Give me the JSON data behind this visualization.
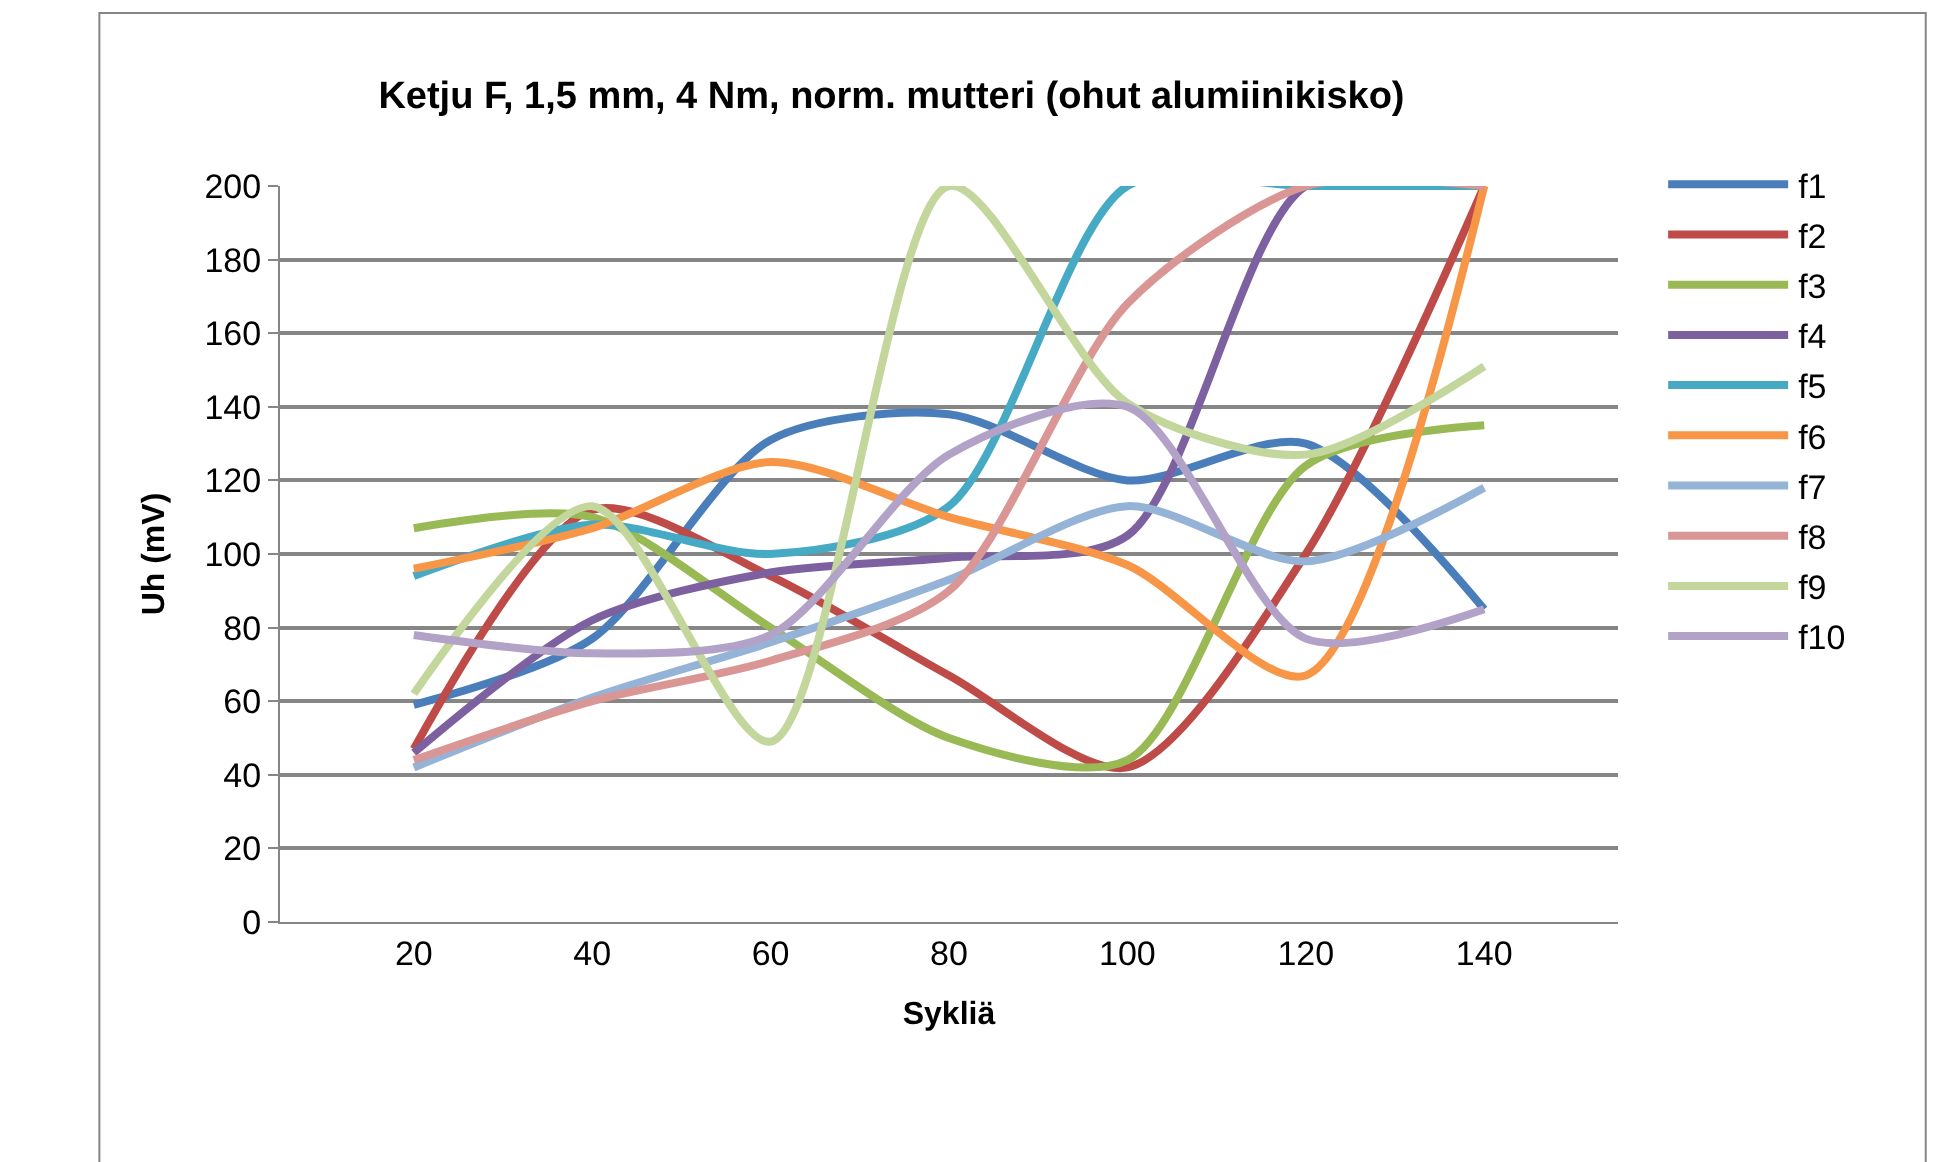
{
  "chart_data": {
    "type": "line",
    "title": "Ketju F, 1,5 mm, 4 Nm, norm. mutteri (ohut alumiinikisko)",
    "xlabel": "Sykliä",
    "ylabel": "Uh (mV)",
    "x": [
      20,
      40,
      60,
      80,
      100,
      120,
      140
    ],
    "xlim": [
      5,
      155
    ],
    "xticks": [
      20,
      40,
      60,
      80,
      100,
      120,
      140
    ],
    "ylim": [
      0,
      200
    ],
    "yticks": [
      0,
      20,
      40,
      60,
      80,
      100,
      120,
      140,
      160,
      180,
      200
    ],
    "grid": "y",
    "legend": "right",
    "marker": "none",
    "line_style": "solid",
    "series": [
      {
        "name": "f1",
        "color": "#4a7ebb",
        "values": [
          59,
          77,
          131,
          138,
          120,
          130,
          85
        ]
      },
      {
        "name": "f2",
        "color": "#be4b48",
        "values": [
          47,
          112,
          94,
          67,
          42,
          100,
          200
        ]
      },
      {
        "name": "f3",
        "color": "#98b954",
        "values": [
          107,
          110,
          80,
          50,
          44,
          124,
          135
        ]
      },
      {
        "name": "f4",
        "color": "#7d60a0",
        "values": [
          46,
          82,
          95,
          99,
          105,
          200,
          200
        ]
      },
      {
        "name": "f5",
        "color": "#46aac5",
        "values": [
          94,
          108,
          100,
          113,
          200,
          200,
          200
        ]
      },
      {
        "name": "f6",
        "color": "#f79646",
        "values": [
          96,
          107,
          125,
          110,
          97,
          67,
          200
        ]
      },
      {
        "name": "f7",
        "color": "#95b3d7",
        "values": [
          42,
          61,
          76,
          93,
          113,
          98,
          118
        ]
      },
      {
        "name": "f8",
        "color": "#d99694",
        "values": [
          44,
          60,
          71,
          90,
          168,
          200,
          200
        ]
      },
      {
        "name": "f9",
        "color": "#c3d69b",
        "values": [
          62,
          113,
          49,
          200,
          141,
          127,
          151
        ]
      },
      {
        "name": "f10",
        "color": "#b3a2c7",
        "values": [
          78,
          73,
          78,
          127,
          140,
          77,
          85
        ]
      }
    ]
  }
}
